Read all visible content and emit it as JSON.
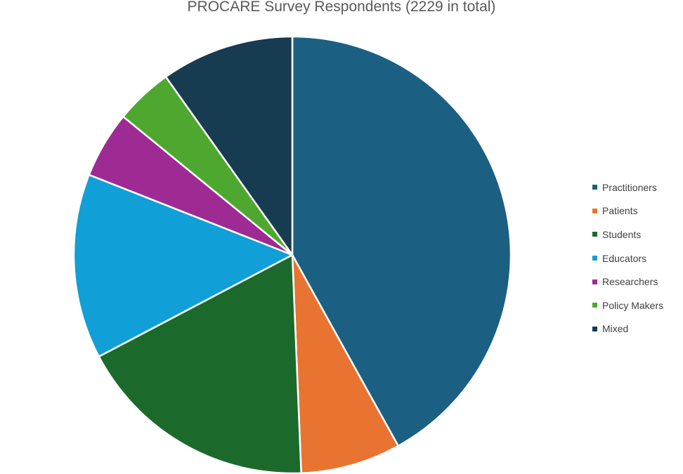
{
  "chart_data": {
    "type": "pie",
    "title": "PROCARE Survey Respondents (2229 in total)",
    "categories": [
      "Practitioners",
      "Patients",
      "Students",
      "Educators",
      "Researchers",
      "Policy Makers",
      "Mixed"
    ],
    "values": [
      935,
      165,
      400,
      305,
      110,
      95,
      219
    ],
    "colors": [
      "#1b6083",
      "#e97331",
      "#1b6a2b",
      "#109fd6",
      "#9e2a94",
      "#4ea82f",
      "#173b50"
    ],
    "legend_position": "right",
    "start_angle_deg": 0,
    "direction": "clockwise"
  }
}
